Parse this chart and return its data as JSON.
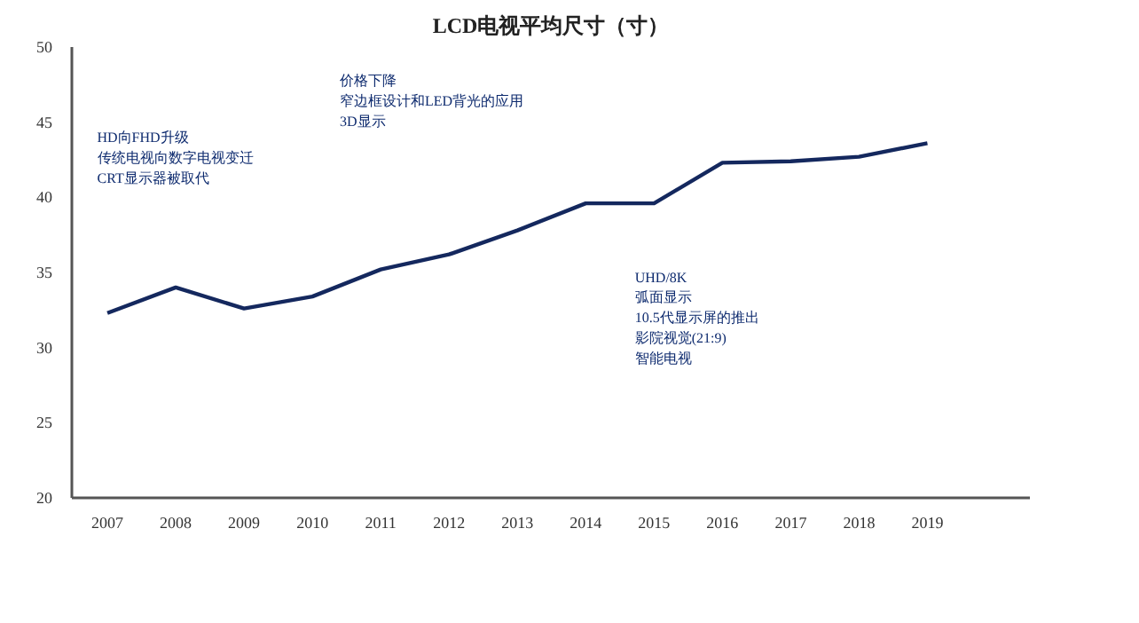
{
  "chart_data": {
    "type": "line",
    "title": "LCD电视平均尺寸（寸）",
    "categories": [
      "2007",
      "2008",
      "2009",
      "2010",
      "2011",
      "2012",
      "2013",
      "2014",
      "2015",
      "2016",
      "2017",
      "2018",
      "2019"
    ],
    "values": [
      32.3,
      34.0,
      32.6,
      33.4,
      35.2,
      36.2,
      37.8,
      39.6,
      39.6,
      42.3,
      42.4,
      42.7,
      43.6
    ],
    "color": "#14285e",
    "ylim": [
      20,
      50
    ],
    "yticks": [
      20,
      25,
      30,
      35,
      40,
      45,
      50
    ],
    "grid": false,
    "marker": "none",
    "line_style": "solid",
    "annotations": [
      "HD向FHD升级",
      "传统电视向数字电视变迁",
      "CRT显示器被取代",
      "价格下降",
      "窄边框设计和LED背光的应用",
      "3D显示",
      "UHD/8K",
      "弧面显示",
      "10.5代显示屏的推出",
      "影院视觉(21:9)",
      "智能电视"
    ]
  }
}
